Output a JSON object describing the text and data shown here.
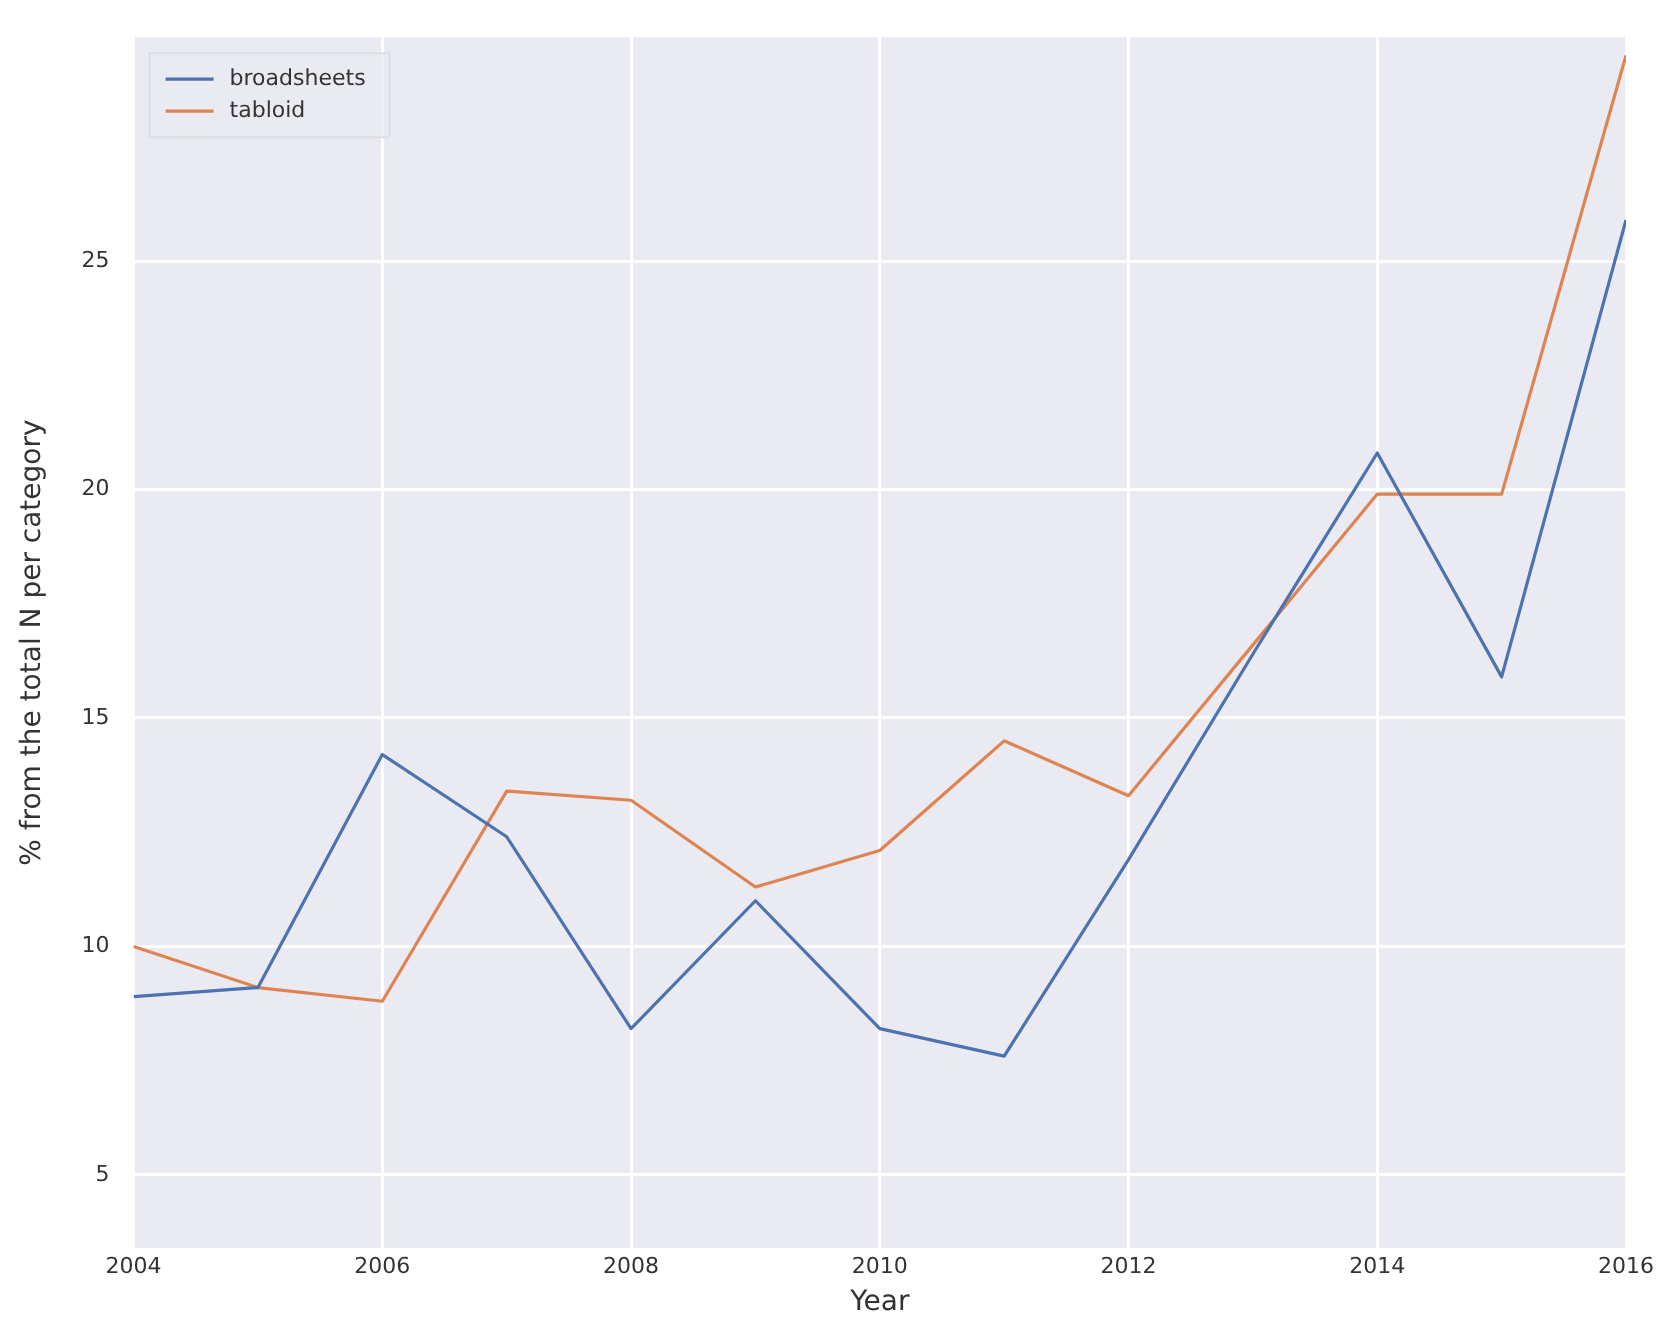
{
  "chart_data": {
    "type": "line",
    "xlabel": "Year",
    "ylabel": "% from the total N per category",
    "x": [
      2004,
      2005,
      2006,
      2007,
      2008,
      2009,
      2010,
      2011,
      2012,
      2013,
      2014,
      2015,
      2016
    ],
    "series": [
      {
        "name": "broadsheets",
        "color": "#4c72b0",
        "values": [
          8.9,
          9.1,
          14.2,
          12.4,
          8.2,
          11.0,
          8.2,
          7.6,
          11.9,
          16.4,
          20.8,
          15.9,
          25.9
        ]
      },
      {
        "name": "tabloid",
        "color": "#dd8452",
        "values": [
          10.0,
          9.1,
          8.8,
          13.4,
          13.2,
          11.3,
          12.1,
          14.5,
          13.3,
          16.6,
          19.9,
          19.9,
          29.5
        ]
      }
    ],
    "xlim": [
      2004,
      2016
    ],
    "xticks": [
      2004,
      2006,
      2008,
      2010,
      2012,
      2014,
      2016
    ],
    "ylim": [
      3.4,
      29.9
    ],
    "yticks": [
      5,
      10,
      15,
      20,
      25
    ],
    "grid": true,
    "legend": "top left",
    "marker": "none",
    "line_style": "solid"
  }
}
